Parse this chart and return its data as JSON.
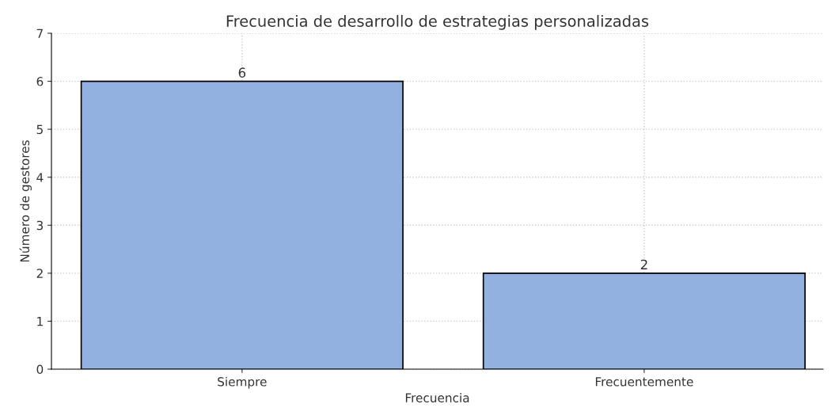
{
  "chart_data": {
    "type": "bar",
    "title": "Frecuencia de desarrollo de estrategias personalizadas",
    "xlabel": "Frecuencia",
    "ylabel": "Número de gestores",
    "categories": [
      "Siempre",
      "Frecuentemente"
    ],
    "values": [
      6,
      2
    ],
    "color": "#92b0e0",
    "ylim": [
      0,
      7
    ],
    "yticks": [
      0,
      1,
      2,
      3,
      4,
      5,
      6,
      7
    ],
    "grid": true,
    "data_labels": true
  }
}
